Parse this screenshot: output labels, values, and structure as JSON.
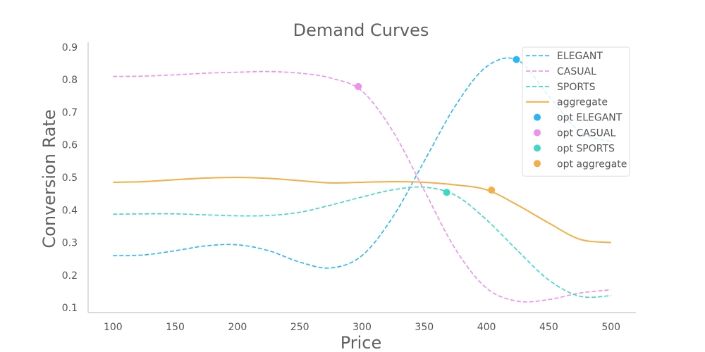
{
  "chart_data": {
    "type": "line",
    "title": "Demand Curves",
    "xlabel": "Price",
    "ylabel": "Conversion Rate",
    "xlim": [
      80,
      520
    ],
    "ylim": [
      0.085,
      0.915
    ],
    "xticks": [
      100,
      150,
      200,
      250,
      300,
      350,
      400,
      450,
      500
    ],
    "yticks": [
      0.1,
      0.2,
      0.3,
      0.4,
      0.5,
      0.6,
      0.7,
      0.8,
      0.9
    ],
    "grid": false,
    "legend_position": "top-right",
    "series": [
      {
        "name": "ELEGANT",
        "color": "#29b6f6",
        "style": "dashed",
        "x": [
          100,
          125,
          150,
          175,
          200,
          225,
          250,
          275,
          300,
          325,
          350,
          375,
          400,
          425,
          450,
          475,
          500
        ],
        "y": [
          0.26,
          0.262,
          0.275,
          0.29,
          0.293,
          0.275,
          0.24,
          0.222,
          0.26,
          0.38,
          0.55,
          0.72,
          0.84,
          0.86,
          0.75,
          0.64,
          0.61
        ]
      },
      {
        "name": "CASUAL",
        "color": "#ee90ee",
        "style": "dashed",
        "x": [
          100,
          125,
          150,
          175,
          200,
          225,
          250,
          275,
          300,
          325,
          350,
          375,
          400,
          425,
          450,
          475,
          500
        ],
        "y": [
          0.81,
          0.811,
          0.815,
          0.82,
          0.823,
          0.825,
          0.82,
          0.805,
          0.765,
          0.64,
          0.46,
          0.28,
          0.16,
          0.12,
          0.125,
          0.145,
          0.155
        ]
      },
      {
        "name": "SPORTS",
        "color": "#3ed8c4",
        "style": "dashed",
        "x": [
          100,
          125,
          150,
          175,
          200,
          225,
          250,
          275,
          300,
          325,
          350,
          375,
          400,
          425,
          450,
          475,
          500
        ],
        "y": [
          0.387,
          0.388,
          0.388,
          0.385,
          0.382,
          0.383,
          0.393,
          0.415,
          0.44,
          0.462,
          0.47,
          0.445,
          0.37,
          0.275,
          0.185,
          0.135,
          0.137
        ]
      },
      {
        "name": "aggregate",
        "color": "#f4ae48",
        "style": "solid",
        "x": [
          100,
          125,
          150,
          175,
          200,
          225,
          250,
          275,
          300,
          325,
          350,
          375,
          400,
          425,
          450,
          475,
          500
        ],
        "y": [
          0.485,
          0.487,
          0.493,
          0.498,
          0.5,
          0.497,
          0.49,
          0.483,
          0.485,
          0.487,
          0.485,
          0.477,
          0.462,
          0.415,
          0.36,
          0.31,
          0.3
        ]
      }
    ],
    "optima": [
      {
        "name": "opt ELEGANT",
        "color": "#29b6f6",
        "x": 424,
        "y": 0.862
      },
      {
        "name": "opt CASUAL",
        "color": "#ee90ee",
        "x": 297,
        "y": 0.779
      },
      {
        "name": "opt SPORTS",
        "color": "#3ed8c4",
        "x": 368,
        "y": 0.454
      },
      {
        "name": "opt aggregate",
        "color": "#f4ae48",
        "x": 404,
        "y": 0.461
      }
    ]
  }
}
